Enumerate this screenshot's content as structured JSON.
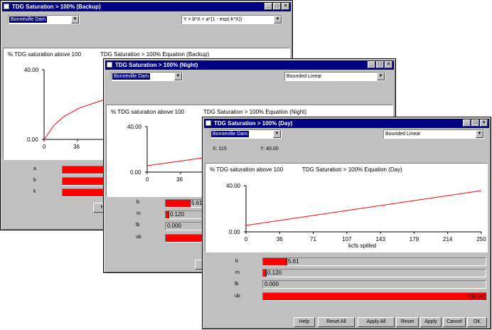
{
  "windows": {
    "backup": {
      "title": "TDG Saturation > 100% (Backup)",
      "dam": "Bonneville Dam",
      "equation": "Y = b*X + a*(1 - exp(-k*X))",
      "ylabel": "% TDG saturation above 100",
      "chart_title": "TDG Saturation > 100% Equation (Backup)",
      "params": [
        {
          "name": "a",
          "fraction": 1.0
        },
        {
          "name": "b",
          "fraction": 1.0
        },
        {
          "name": "k",
          "fraction": 1.0
        }
      ],
      "button": "He"
    },
    "night": {
      "title": "TDG Saturation > 100% (Night)",
      "dam": "Bonneville Dam",
      "equation": "Bounded Linear",
      "ylabel": "% TDG saturation above 100",
      "chart_title": "TDG Saturation > 100% Equation (Night)",
      "params": [
        {
          "name": "b",
          "value": "5.61",
          "fraction": 0.6
        },
        {
          "name": "m",
          "value": "0.120",
          "fraction": 0.09
        },
        {
          "name": "lb",
          "value": "0.000",
          "fraction": 0
        },
        {
          "name": "ub",
          "value": "",
          "fraction": 1.0
        }
      ]
    },
    "day": {
      "title": "TDG Saturation > 100% (Day)",
      "dam": "Bonneville Dam",
      "equation": "Bounded Linear",
      "x_readout": "X: 115",
      "y_readout": "Y: 40.00",
      "ylabel": "% TDG saturation above 100",
      "chart_title": "TDG Saturation > 100% Equation (Day)",
      "params": [
        {
          "name": "b",
          "value": "5.61",
          "fraction": 0.105
        },
        {
          "name": "m",
          "value": "0.120",
          "fraction": 0.012
        },
        {
          "name": "lb",
          "value": "0.000",
          "fraction": 0
        },
        {
          "name": "ub",
          "value": "400.00",
          "fraction": 1.0
        }
      ],
      "buttons": {
        "help": "Help",
        "reset_all": "Reset All",
        "apply_all": "Apply All",
        "reset": "Reset",
        "apply": "Apply",
        "cancel": "Cancel",
        "ok": "OK"
      }
    }
  },
  "chart_data": [
    {
      "type": "line",
      "chart": "backup",
      "title": "TDG Saturation > 100% Equation (Backup)",
      "ylabel": "% TDG saturation above 100",
      "ylim": [
        0,
        40
      ],
      "xlim": [
        0,
        250
      ],
      "y_ticks": [
        "40.00",
        "0.00"
      ],
      "x_ticks": [
        "0",
        "36"
      ],
      "series": [
        {
          "x": [
            0,
            10,
            20,
            36,
            60,
            80
          ],
          "y": [
            0,
            8,
            13,
            18,
            22.5,
            25
          ]
        }
      ]
    },
    {
      "type": "line",
      "chart": "night",
      "title": "TDG Saturation > 100% Equation (Night)",
      "ylabel": "% TDG saturation above 100",
      "ylim": [
        0,
        40
      ],
      "xlim": [
        0,
        250
      ],
      "y_ticks": [
        "40.00",
        "0.00"
      ],
      "x_ticks": [
        "0",
        "36"
      ],
      "series": [
        {
          "x": [
            0,
            60
          ],
          "y": [
            5.61,
            12.8
          ]
        }
      ]
    },
    {
      "type": "line",
      "chart": "day",
      "title": "TDG Saturation > 100% Equation (Day)",
      "ylabel": "% TDG saturation above 100",
      "xlabel": "kcfs spilled",
      "ylim": [
        0,
        40
      ],
      "xlim": [
        0,
        250
      ],
      "y_ticks": [
        "40.00",
        "0.00"
      ],
      "x_ticks": [
        "0",
        "36",
        "71",
        "107",
        "143",
        "179",
        "214",
        "250"
      ],
      "series": [
        {
          "x": [
            0,
            250
          ],
          "y": [
            5.61,
            35.61
          ]
        }
      ]
    }
  ]
}
